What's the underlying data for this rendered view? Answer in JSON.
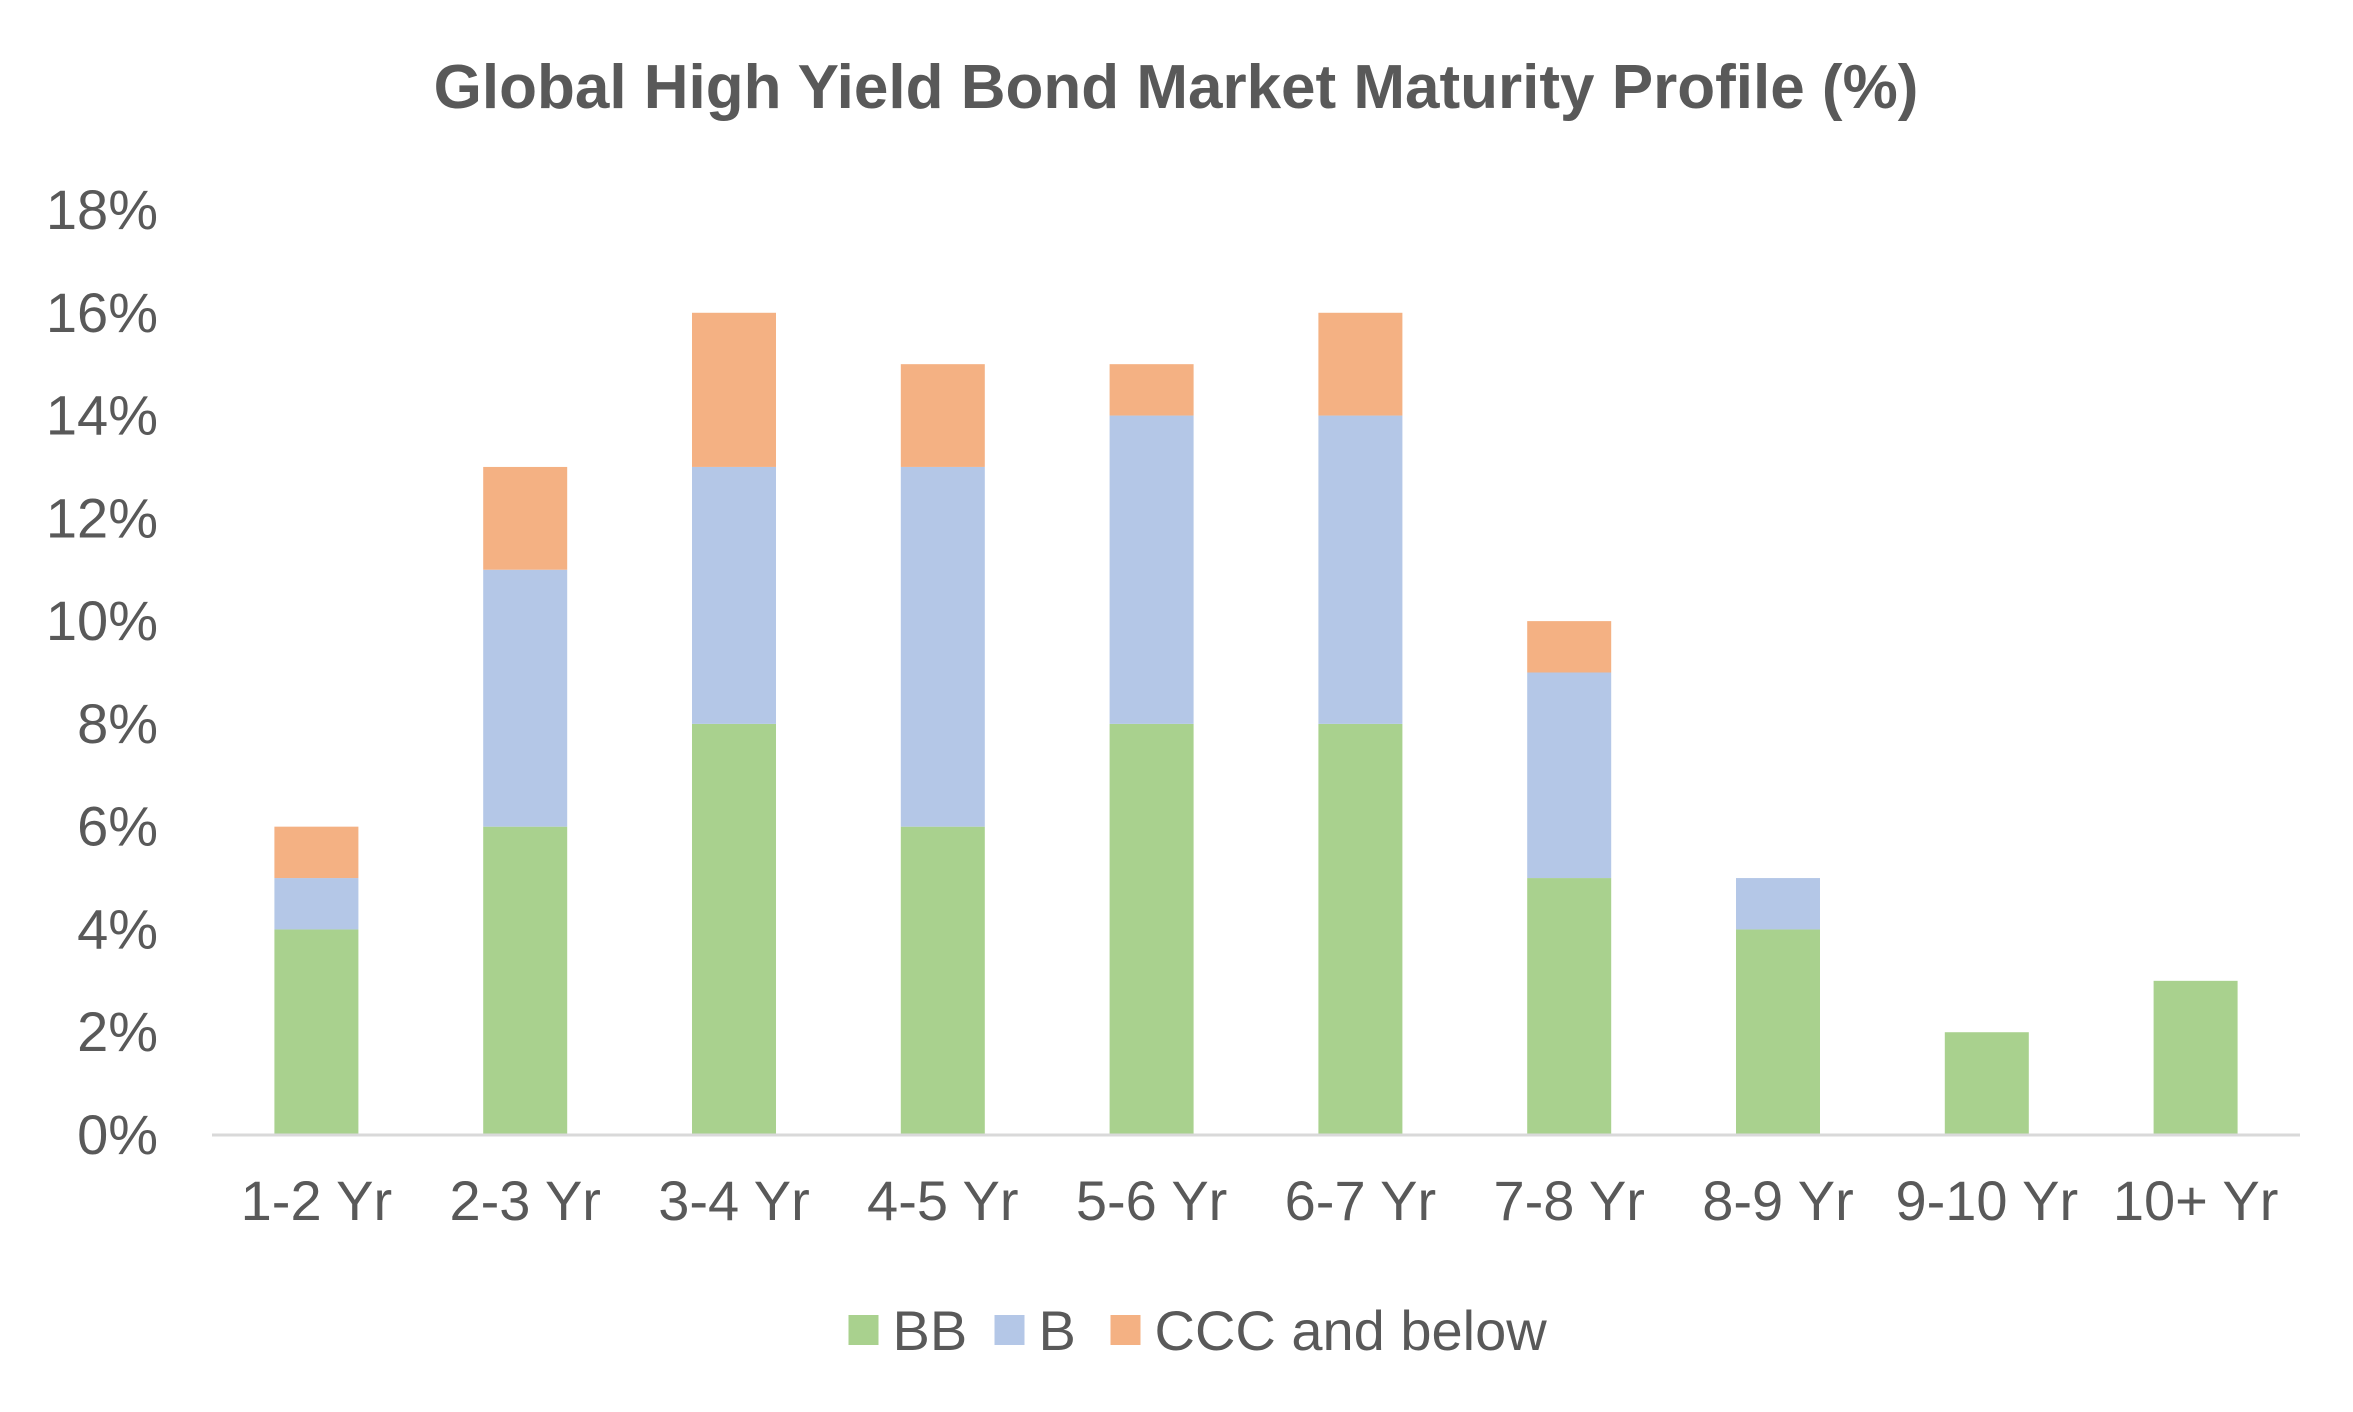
{
  "chart_data": {
    "type": "bar",
    "stacked": true,
    "title": "Global High Yield Bond Market Maturity Profile (%)",
    "xlabel": "",
    "ylabel": "",
    "categories": [
      "1-2 Yr",
      "2-3 Yr",
      "3-4 Yr",
      "4-5 Yr",
      "5-6 Yr",
      "6-7 Yr",
      "7-8 Yr",
      "8-9 Yr",
      "9-10 Yr",
      "10+ Yr"
    ],
    "ylim": [
      0,
      18
    ],
    "yticks": [
      0,
      2,
      4,
      6,
      8,
      10,
      12,
      14,
      16,
      18
    ],
    "ytick_labels": [
      "0%",
      "2%",
      "4%",
      "6%",
      "8%",
      "10%",
      "12%",
      "14%",
      "16%",
      "18%"
    ],
    "grid": false,
    "legend_position": "bottom",
    "series": [
      {
        "name": "BB",
        "color": "#a9d18e",
        "values": [
          4,
          6,
          8,
          6,
          8,
          8,
          5,
          4,
          2,
          3
        ]
      },
      {
        "name": "B",
        "color": "#b4c7e7",
        "values": [
          1,
          5,
          5,
          7,
          6,
          6,
          4,
          1,
          0,
          0
        ]
      },
      {
        "name": "CCC and below",
        "color": "#f4b183",
        "values": [
          1,
          2,
          3,
          2,
          1,
          2,
          1,
          0,
          0,
          0
        ]
      }
    ],
    "axis_color": "#d9d9d9",
    "text_color": "#595959"
  }
}
